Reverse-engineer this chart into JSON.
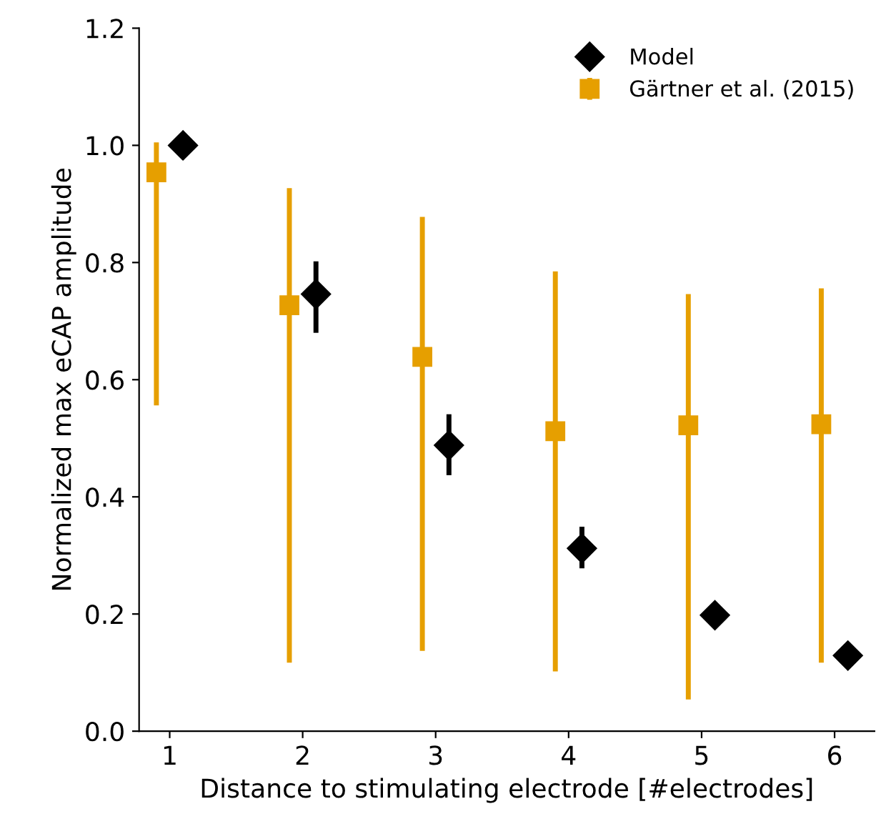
{
  "chart_data": {
    "type": "scatter",
    "xlabel": "Distance to stimulating electrode [#electrodes]",
    "ylabel": "Normalized max eCAP amplitude",
    "xlim": [
      0.77,
      6.3
    ],
    "xticks": [
      1,
      2,
      3,
      4,
      5,
      6
    ],
    "ylim": [
      0,
      1.2
    ],
    "yticks": [
      {
        "value": 0,
        "label": "0.0"
      },
      0.2,
      0.4,
      0.6,
      0.8,
      {
        "value": 1,
        "label": "1.0"
      },
      1.2
    ],
    "grid": false,
    "legend": "top right",
    "series": [
      {
        "name": "Model",
        "color": "#000000",
        "marker": "diamond",
        "x": [
          1.1,
          2.1,
          3.1,
          4.1,
          5.1,
          6.1
        ],
        "values": [
          1.0,
          0.746,
          0.488,
          0.312,
          0.198,
          0.129
        ],
        "errors": [
          null,
          [
            0.68,
            0.802
          ],
          [
            0.437,
            0.541
          ],
          [
            0.278,
            0.349
          ],
          null,
          null
        ]
      },
      {
        "name": "Gärtner et al. (2015)",
        "color": "#e69f00",
        "marker": "square",
        "x": [
          0.9,
          1.9,
          2.9,
          3.9,
          4.9,
          5.9
        ],
        "values": [
          0.954,
          0.727,
          0.639,
          0.512,
          0.522,
          0.524
        ],
        "errors": [
          [
            0.556,
            1.005
          ],
          [
            0.117,
            0.927
          ],
          [
            0.137,
            0.878
          ],
          [
            0.102,
            0.785
          ],
          [
            0.054,
            0.746
          ],
          [
            0.117,
            0.756
          ]
        ]
      }
    ]
  }
}
